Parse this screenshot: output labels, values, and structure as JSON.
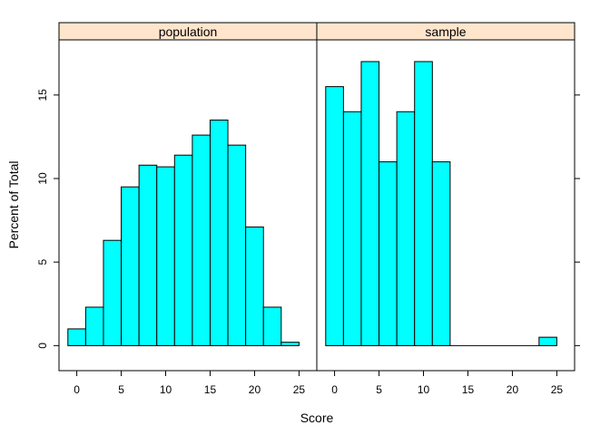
{
  "chart_data": {
    "type": "bar",
    "xlabel": "Score",
    "ylabel": "Percent of Total",
    "xlim": [
      -2,
      27
    ],
    "ylim": [
      -1.5,
      18.3
    ],
    "x_ticks": [
      0,
      5,
      10,
      15,
      20,
      25
    ],
    "y_ticks": [
      0,
      5,
      10,
      15
    ],
    "bin_width": 2,
    "bar_color": "#00ffff",
    "strip_color": "#ffe5cc",
    "panels": [
      {
        "name": "population",
        "bins": [
          {
            "x0": -1,
            "value": 1.0
          },
          {
            "x0": 1,
            "value": 2.3
          },
          {
            "x0": 3,
            "value": 6.3
          },
          {
            "x0": 5,
            "value": 9.5
          },
          {
            "x0": 7,
            "value": 10.8
          },
          {
            "x0": 9,
            "value": 10.7
          },
          {
            "x0": 11,
            "value": 11.4
          },
          {
            "x0": 13,
            "value": 12.6
          },
          {
            "x0": 15,
            "value": 13.5
          },
          {
            "x0": 17,
            "value": 12.0
          },
          {
            "x0": 19,
            "value": 7.1
          },
          {
            "x0": 21,
            "value": 2.3
          },
          {
            "x0": 23,
            "value": 0.2
          }
        ]
      },
      {
        "name": "sample",
        "bins": [
          {
            "x0": -1,
            "value": 15.5
          },
          {
            "x0": 1,
            "value": 14.0
          },
          {
            "x0": 3,
            "value": 17.0
          },
          {
            "x0": 5,
            "value": 11.0
          },
          {
            "x0": 7,
            "value": 14.0
          },
          {
            "x0": 9,
            "value": 17.0
          },
          {
            "x0": 11,
            "value": 11.0
          },
          {
            "x0": 13,
            "value": 0
          },
          {
            "x0": 15,
            "value": 0
          },
          {
            "x0": 17,
            "value": 0
          },
          {
            "x0": 19,
            "value": 0
          },
          {
            "x0": 21,
            "value": 0
          },
          {
            "x0": 23,
            "value": 0.5
          }
        ]
      }
    ]
  }
}
